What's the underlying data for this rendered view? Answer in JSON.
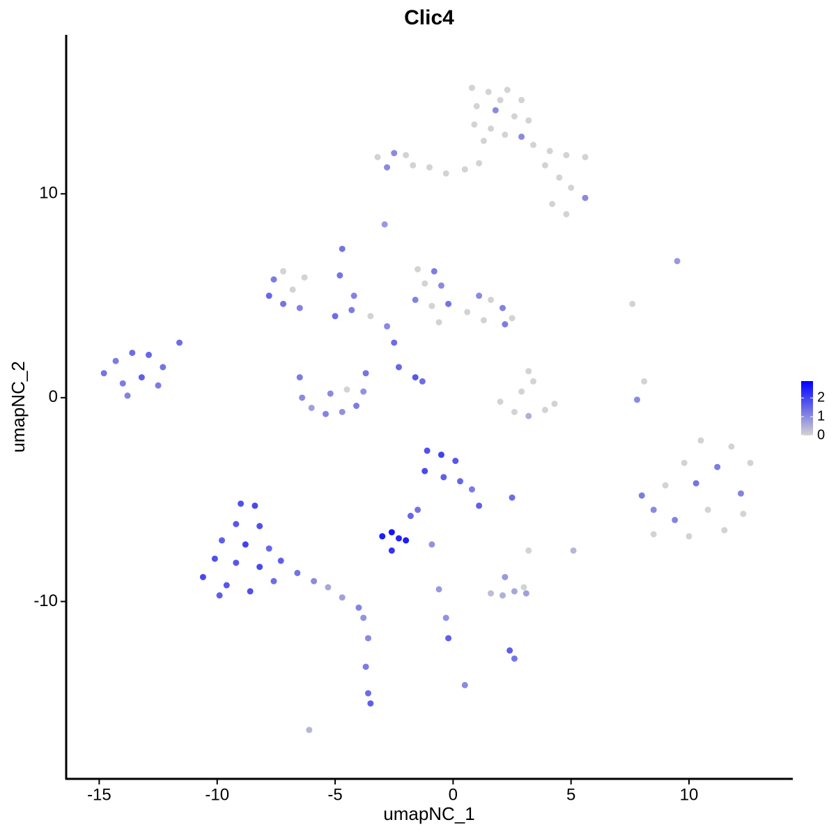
{
  "chart_data": {
    "type": "scatter",
    "title": "Clic4",
    "xlabel": "umapNC_1",
    "ylabel": "umapNC_2",
    "xlim": [
      -16.4,
      14.4
    ],
    "ylim": [
      -18.7,
      17.8
    ],
    "xticks": [
      -15,
      -10,
      -5,
      0,
      5,
      10
    ],
    "yticks": [
      -10,
      0,
      10
    ],
    "colorbar": {
      "lim": [
        0,
        2.9
      ],
      "ticks": [
        0,
        1,
        2
      ],
      "low_color": "#d3d3d3",
      "high_color": "#0000ff"
    },
    "points": [
      {
        "x": 0.8,
        "y": 15.2,
        "expression": 0
      },
      {
        "x": 1.5,
        "y": 15.0,
        "expression": 0
      },
      {
        "x": 2.3,
        "y": 15.1,
        "expression": 0
      },
      {
        "x": 2.9,
        "y": 14.6,
        "expression": 0
      },
      {
        "x": 1.0,
        "y": 14.3,
        "expression": 0
      },
      {
        "x": 1.8,
        "y": 14.1,
        "expression": 1
      },
      {
        "x": 2.6,
        "y": 13.8,
        "expression": 0
      },
      {
        "x": 3.2,
        "y": 13.6,
        "expression": 0
      },
      {
        "x": 0.9,
        "y": 13.4,
        "expression": 0
      },
      {
        "x": 1.6,
        "y": 13.2,
        "expression": 0
      },
      {
        "x": 2.2,
        "y": 12.9,
        "expression": 0
      },
      {
        "x": 2.9,
        "y": 12.8,
        "expression": 1
      },
      {
        "x": 1.3,
        "y": 12.6,
        "expression": 0
      },
      {
        "x": 2.0,
        "y": 14.6,
        "expression": 0
      },
      {
        "x": -3.2,
        "y": 11.8,
        "expression": 0
      },
      {
        "x": -2.5,
        "y": 12.0,
        "expression": 1
      },
      {
        "x": -2.0,
        "y": 11.9,
        "expression": 0
      },
      {
        "x": -2.8,
        "y": 11.3,
        "expression": 1
      },
      {
        "x": -1.7,
        "y": 11.4,
        "expression": 0
      },
      {
        "x": -1.0,
        "y": 11.3,
        "expression": 0
      },
      {
        "x": -0.3,
        "y": 11.0,
        "expression": 0
      },
      {
        "x": 0.5,
        "y": 11.2,
        "expression": 0
      },
      {
        "x": 1.1,
        "y": 11.5,
        "expression": 0
      },
      {
        "x": 3.4,
        "y": 12.4,
        "expression": 0
      },
      {
        "x": 4.1,
        "y": 12.1,
        "expression": 0
      },
      {
        "x": 4.8,
        "y": 11.9,
        "expression": 0
      },
      {
        "x": 5.6,
        "y": 11.8,
        "expression": 0
      },
      {
        "x": 3.9,
        "y": 11.4,
        "expression": 0
      },
      {
        "x": 4.5,
        "y": 10.8,
        "expression": 0
      },
      {
        "x": 5.0,
        "y": 10.3,
        "expression": 0
      },
      {
        "x": 5.6,
        "y": 9.8,
        "expression": 1
      },
      {
        "x": 4.2,
        "y": 9.5,
        "expression": 0
      },
      {
        "x": 4.8,
        "y": 9.0,
        "expression": 0
      },
      {
        "x": -2.9,
        "y": 8.5,
        "expression": 0.8
      },
      {
        "x": 9.5,
        "y": 6.7,
        "expression": 0.8
      },
      {
        "x": -4.7,
        "y": 7.3,
        "expression": 1.3
      },
      {
        "x": 7.6,
        "y": 4.6,
        "expression": 0
      },
      {
        "x": -7.6,
        "y": 5.8,
        "expression": 1.2
      },
      {
        "x": -7.2,
        "y": 6.2,
        "expression": 0
      },
      {
        "x": -7.8,
        "y": 5.0,
        "expression": 1.5
      },
      {
        "x": -7.2,
        "y": 4.6,
        "expression": 1.3
      },
      {
        "x": -6.8,
        "y": 5.3,
        "expression": 0
      },
      {
        "x": -6.5,
        "y": 4.4,
        "expression": 1.1
      },
      {
        "x": -6.3,
        "y": 5.9,
        "expression": 0
      },
      {
        "x": -5.0,
        "y": 4.0,
        "expression": 1.4
      },
      {
        "x": -4.3,
        "y": 4.3,
        "expression": 1.2
      },
      {
        "x": -3.5,
        "y": 4.0,
        "expression": 0
      },
      {
        "x": -2.8,
        "y": 3.5,
        "expression": 1.0
      },
      {
        "x": -2.5,
        "y": 2.7,
        "expression": 1.4
      },
      {
        "x": -4.8,
        "y": 6.0,
        "expression": 1.3
      },
      {
        "x": -4.2,
        "y": 5.0,
        "expression": 1.1
      },
      {
        "x": -2.3,
        "y": 1.5,
        "expression": 1.5
      },
      {
        "x": -1.6,
        "y": 1.0,
        "expression": 1.7
      },
      {
        "x": -1.3,
        "y": 0.8,
        "expression": 1.4
      },
      {
        "x": -1.5,
        "y": 6.3,
        "expression": 0
      },
      {
        "x": -0.8,
        "y": 6.2,
        "expression": 1.2
      },
      {
        "x": -1.2,
        "y": 5.6,
        "expression": 0
      },
      {
        "x": -0.5,
        "y": 5.5,
        "expression": 1.0
      },
      {
        "x": -1.6,
        "y": 4.8,
        "expression": 1.1
      },
      {
        "x": -0.9,
        "y": 4.5,
        "expression": 0
      },
      {
        "x": -0.2,
        "y": 4.6,
        "expression": 1.3
      },
      {
        "x": 0.6,
        "y": 4.2,
        "expression": 0
      },
      {
        "x": 1.1,
        "y": 5.0,
        "expression": 1.0
      },
      {
        "x": 1.6,
        "y": 4.8,
        "expression": 0
      },
      {
        "x": 2.1,
        "y": 4.4,
        "expression": 1.1
      },
      {
        "x": 2.5,
        "y": 3.9,
        "expression": 0
      },
      {
        "x": 1.3,
        "y": 3.8,
        "expression": 0
      },
      {
        "x": -0.6,
        "y": 3.7,
        "expression": 0
      },
      {
        "x": 2.2,
        "y": 3.6,
        "expression": 1.2
      },
      {
        "x": -6.5,
        "y": 1.0,
        "expression": 1.2
      },
      {
        "x": -6.4,
        "y": 0.0,
        "expression": 1.0
      },
      {
        "x": -6.0,
        "y": -0.5,
        "expression": 0.7
      },
      {
        "x": -5.4,
        "y": -0.8,
        "expression": 1.1
      },
      {
        "x": -4.7,
        "y": -0.7,
        "expression": 0.9
      },
      {
        "x": -4.1,
        "y": -0.4,
        "expression": 1.2
      },
      {
        "x": -3.8,
        "y": 0.3,
        "expression": 0.9
      },
      {
        "x": -3.7,
        "y": 1.2,
        "expression": 1.3
      },
      {
        "x": -5.2,
        "y": 0.2,
        "expression": 1.0
      },
      {
        "x": -4.5,
        "y": 0.4,
        "expression": 0
      },
      {
        "x": -14.8,
        "y": 1.2,
        "expression": 1.3
      },
      {
        "x": -14.3,
        "y": 1.8,
        "expression": 1.2
      },
      {
        "x": -13.6,
        "y": 2.2,
        "expression": 1.4
      },
      {
        "x": -12.9,
        "y": 2.1,
        "expression": 1.5
      },
      {
        "x": -14.0,
        "y": 0.7,
        "expression": 1.2
      },
      {
        "x": -13.2,
        "y": 1.0,
        "expression": 1.6
      },
      {
        "x": -12.5,
        "y": 0.6,
        "expression": 1.2
      },
      {
        "x": -13.8,
        "y": 0.1,
        "expression": 1.1
      },
      {
        "x": -12.3,
        "y": 1.5,
        "expression": 1.3
      },
      {
        "x": -11.6,
        "y": 2.7,
        "expression": 1.4
      },
      {
        "x": 3.2,
        "y": 1.3,
        "expression": 0
      },
      {
        "x": 3.4,
        "y": 0.8,
        "expression": 0
      },
      {
        "x": 2.9,
        "y": 0.3,
        "expression": 0
      },
      {
        "x": 2.0,
        "y": -0.2,
        "expression": 0
      },
      {
        "x": 2.6,
        "y": -0.7,
        "expression": 0
      },
      {
        "x": 3.2,
        "y": -0.9,
        "expression": 0.5
      },
      {
        "x": 3.9,
        "y": -0.6,
        "expression": 0
      },
      {
        "x": 4.3,
        "y": -0.3,
        "expression": 0
      },
      {
        "x": 7.8,
        "y": -0.1,
        "expression": 1.0
      },
      {
        "x": 8.1,
        "y": 0.8,
        "expression": 0
      },
      {
        "x": 8.0,
        "y": -4.8,
        "expression": 1.2
      },
      {
        "x": 8.5,
        "y": -5.5,
        "expression": 1.0
      },
      {
        "x": 9.0,
        "y": -4.3,
        "expression": 0
      },
      {
        "x": 8.5,
        "y": -6.7,
        "expression": 0
      },
      {
        "x": 9.4,
        "y": -6.0,
        "expression": 1.1
      },
      {
        "x": 9.8,
        "y": -3.2,
        "expression": 0
      },
      {
        "x": 10.3,
        "y": -4.2,
        "expression": 1.3
      },
      {
        "x": 10.5,
        "y": -2.1,
        "expression": 0
      },
      {
        "x": 10.8,
        "y": -5.5,
        "expression": 0
      },
      {
        "x": 11.2,
        "y": -3.4,
        "expression": 1.2
      },
      {
        "x": 11.5,
        "y": -6.5,
        "expression": 0
      },
      {
        "x": 11.8,
        "y": -2.4,
        "expression": 0
      },
      {
        "x": 12.2,
        "y": -4.7,
        "expression": 1.1
      },
      {
        "x": 12.6,
        "y": -3.2,
        "expression": 0
      },
      {
        "x": 10.0,
        "y": -6.8,
        "expression": 0
      },
      {
        "x": 12.3,
        "y": -5.7,
        "expression": 0
      },
      {
        "x": -1.1,
        "y": -2.6,
        "expression": 1.8
      },
      {
        "x": -0.5,
        "y": -2.8,
        "expression": 2.0
      },
      {
        "x": 0.1,
        "y": -3.1,
        "expression": 1.7
      },
      {
        "x": -1.2,
        "y": -3.6,
        "expression": 1.9
      },
      {
        "x": -0.4,
        "y": -3.9,
        "expression": 1.6
      },
      {
        "x": 0.3,
        "y": -4.1,
        "expression": 1.5
      },
      {
        "x": 0.8,
        "y": -4.5,
        "expression": 1.2
      },
      {
        "x": 1.1,
        "y": -5.3,
        "expression": 1.6
      },
      {
        "x": -1.5,
        "y": -5.5,
        "expression": 1.3
      },
      {
        "x": -3.0,
        "y": -6.8,
        "expression": 2.5
      },
      {
        "x": -2.6,
        "y": -6.6,
        "expression": 2.6
      },
      {
        "x": -2.3,
        "y": -6.9,
        "expression": 2.4
      },
      {
        "x": -2.0,
        "y": -7.0,
        "expression": 2.5
      },
      {
        "x": -2.6,
        "y": -7.5,
        "expression": 2.2
      },
      {
        "x": -9.0,
        "y": -5.2,
        "expression": 1.8
      },
      {
        "x": -8.4,
        "y": -5.3,
        "expression": 1.9
      },
      {
        "x": -9.2,
        "y": -6.2,
        "expression": 1.7
      },
      {
        "x": -8.2,
        "y": -6.3,
        "expression": 1.8
      },
      {
        "x": -9.8,
        "y": -7.0,
        "expression": 1.6
      },
      {
        "x": -8.8,
        "y": -7.2,
        "expression": 2.0
      },
      {
        "x": -7.8,
        "y": -7.4,
        "expression": 1.5
      },
      {
        "x": -10.1,
        "y": -7.9,
        "expression": 1.8
      },
      {
        "x": -9.2,
        "y": -8.1,
        "expression": 1.7
      },
      {
        "x": -8.2,
        "y": -8.3,
        "expression": 1.9
      },
      {
        "x": -7.3,
        "y": -8.0,
        "expression": 1.6
      },
      {
        "x": -10.6,
        "y": -8.8,
        "expression": 1.9
      },
      {
        "x": -9.6,
        "y": -9.2,
        "expression": 1.7
      },
      {
        "x": -8.6,
        "y": -9.5,
        "expression": 1.8
      },
      {
        "x": -7.6,
        "y": -9.0,
        "expression": 1.4
      },
      {
        "x": -9.9,
        "y": -9.7,
        "expression": 1.6
      },
      {
        "x": -6.6,
        "y": -8.6,
        "expression": 1.3
      },
      {
        "x": -5.9,
        "y": -9.0,
        "expression": 1.0
      },
      {
        "x": -5.3,
        "y": -9.3,
        "expression": 0.6
      },
      {
        "x": -4.7,
        "y": -9.8,
        "expression": 0.7
      },
      {
        "x": -4.0,
        "y": -10.3,
        "expression": 1.1
      },
      {
        "x": -3.8,
        "y": -10.8,
        "expression": 0.9
      },
      {
        "x": -3.6,
        "y": -11.8,
        "expression": 1.0
      },
      {
        "x": -3.7,
        "y": -13.2,
        "expression": 1.2
      },
      {
        "x": -3.6,
        "y": -14.5,
        "expression": 1.4
      },
      {
        "x": -3.5,
        "y": -15.0,
        "expression": 1.6
      },
      {
        "x": 1.6,
        "y": -9.6,
        "expression": 0.3
      },
      {
        "x": 2.1,
        "y": -9.7,
        "expression": 0.5
      },
      {
        "x": 2.6,
        "y": -9.5,
        "expression": 0.6
      },
      {
        "x": 3.0,
        "y": -9.3,
        "expression": 0
      },
      {
        "x": 2.2,
        "y": -8.8,
        "expression": 0.8
      },
      {
        "x": 3.1,
        "y": -9.6,
        "expression": 0.7
      },
      {
        "x": -0.6,
        "y": -9.4,
        "expression": 0.8
      },
      {
        "x": -0.3,
        "y": -10.8,
        "expression": 0.9
      },
      {
        "x": -0.2,
        "y": -11.8,
        "expression": 1.6
      },
      {
        "x": 2.4,
        "y": -12.4,
        "expression": 1.6
      },
      {
        "x": 2.6,
        "y": -12.8,
        "expression": 1.3
      },
      {
        "x": 2.5,
        "y": -4.9,
        "expression": 1.4
      },
      {
        "x": 3.2,
        "y": -7.5,
        "expression": 0
      },
      {
        "x": 5.1,
        "y": -7.5,
        "expression": 0.4
      },
      {
        "x": 0.5,
        "y": -14.1,
        "expression": 1.0
      },
      {
        "x": -6.1,
        "y": -16.3,
        "expression": 0.4
      },
      {
        "x": -0.9,
        "y": -7.2,
        "expression": 0.9
      },
      {
        "x": -1.8,
        "y": -5.8,
        "expression": 1.5
      }
    ]
  }
}
